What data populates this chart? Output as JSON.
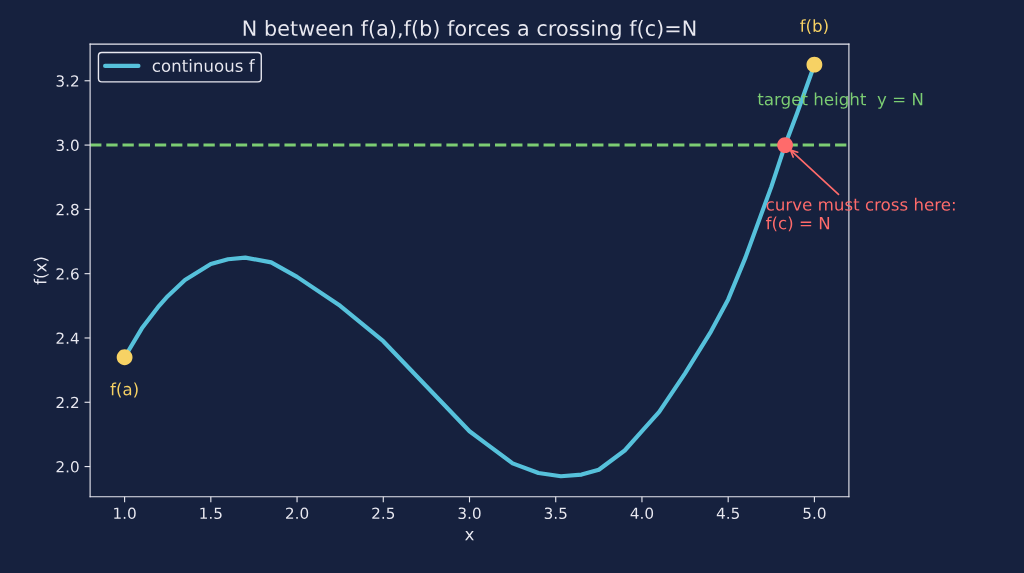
{
  "chart_data": {
    "type": "line",
    "title": "N between f(a),f(b) forces a crossing f(c)=N",
    "xlabel": "x",
    "ylabel": "f(x)",
    "xlim": [
      0.8,
      5.2
    ],
    "ylim": [
      1.906,
      3.314
    ],
    "xticks": [
      {
        "value": 1,
        "label": "1.0"
      },
      1.5,
      {
        "value": 2,
        "label": "2.0"
      },
      2.5,
      {
        "value": 3,
        "label": "3.0"
      },
      3.5,
      {
        "value": 4,
        "label": "4.0"
      },
      4.5,
      {
        "value": 5,
        "label": "5.0"
      }
    ],
    "yticks": [
      {
        "value": 2,
        "label": "2.0"
      },
      2.2,
      2.4,
      2.6,
      2.8,
      {
        "value": 3,
        "label": "3.0"
      },
      3.2
    ],
    "series": [
      {
        "name": "continuous f",
        "color": "#56c1db",
        "x": [
          1.0,
          1.1,
          1.2,
          1.25,
          1.35,
          1.5,
          1.6,
          1.7,
          1.85,
          2.0,
          2.25,
          2.5,
          2.75,
          3.0,
          3.1,
          3.25,
          3.4,
          3.53,
          3.65,
          3.75,
          3.9,
          4.0,
          4.1,
          4.25,
          4.4,
          4.5,
          4.6,
          4.75,
          4.83,
          4.9,
          5.0
        ],
        "values": [
          2.34,
          2.43,
          2.5,
          2.53,
          2.58,
          2.63,
          2.645,
          2.65,
          2.635,
          2.59,
          2.5,
          2.39,
          2.25,
          2.11,
          2.07,
          2.01,
          1.98,
          1.97,
          1.975,
          1.99,
          2.05,
          2.11,
          2.17,
          2.29,
          2.42,
          2.52,
          2.65,
          2.87,
          3.0,
          3.1,
          3.25
        ]
      },
      {
        "name": "f(a)",
        "type": "scatter",
        "color": "#f7d264",
        "x": [
          1.0
        ],
        "values": [
          2.34
        ]
      },
      {
        "name": "f(b)",
        "type": "scatter",
        "color": "#f7d264",
        "x": [
          5.0
        ],
        "values": [
          3.25
        ]
      },
      {
        "type": "scatter",
        "color": "#ff6b6b",
        "x": [
          4.83
        ],
        "values": [
          3.0
        ]
      }
    ],
    "ref_lines": [
      {
        "axis": "y",
        "value": 3.0,
        "label": "target height  y = N",
        "color": "#7ccd73",
        "line_style": "dashed"
      }
    ],
    "annotations": [
      {
        "text": "curve must cross here:\nf(c) = N",
        "x": 4.83,
        "y": 3.0
      }
    ],
    "legend": "top left",
    "grid": false
  }
}
